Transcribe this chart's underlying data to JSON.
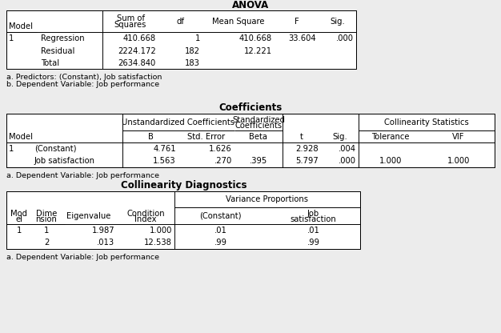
{
  "bg_color": "#ececec",
  "title1": "ANOVA",
  "title2": "Coefficients",
  "title3": "Collinearity Diagnostics",
  "anova": {
    "footnotes": [
      "a. Predictors: (Constant), Job satisfaction",
      "b. Dependent Variable: Job performance"
    ],
    "rows": [
      [
        "1",
        "Regression",
        "410.668",
        "1",
        "410.668",
        "33.604",
        ".000"
      ],
      [
        "",
        "Residual",
        "2224.172",
        "182",
        "12.221",
        "",
        ""
      ],
      [
        "",
        "Total",
        "2634.840",
        "183",
        "",
        "",
        ""
      ]
    ]
  },
  "coefficients": {
    "footnote": "a. Dependent Variable: Job performance",
    "rows": [
      [
        "1",
        "(Constant)",
        "4.761",
        "1.626",
        "",
        "2.928",
        ".004",
        "",
        ""
      ],
      [
        "",
        "Job satisfaction",
        "1.563",
        ".270",
        ".395",
        "5.797",
        ".000",
        "1.000",
        "1.000"
      ]
    ]
  },
  "collinearity": {
    "footnote": "a. Dependent Variable: Job performance",
    "rows": [
      [
        "1",
        "1",
        "1.987",
        "1.000",
        ".01",
        ".01"
      ],
      [
        "",
        "2",
        ".013",
        "12.538",
        ".99",
        ".99"
      ]
    ]
  }
}
